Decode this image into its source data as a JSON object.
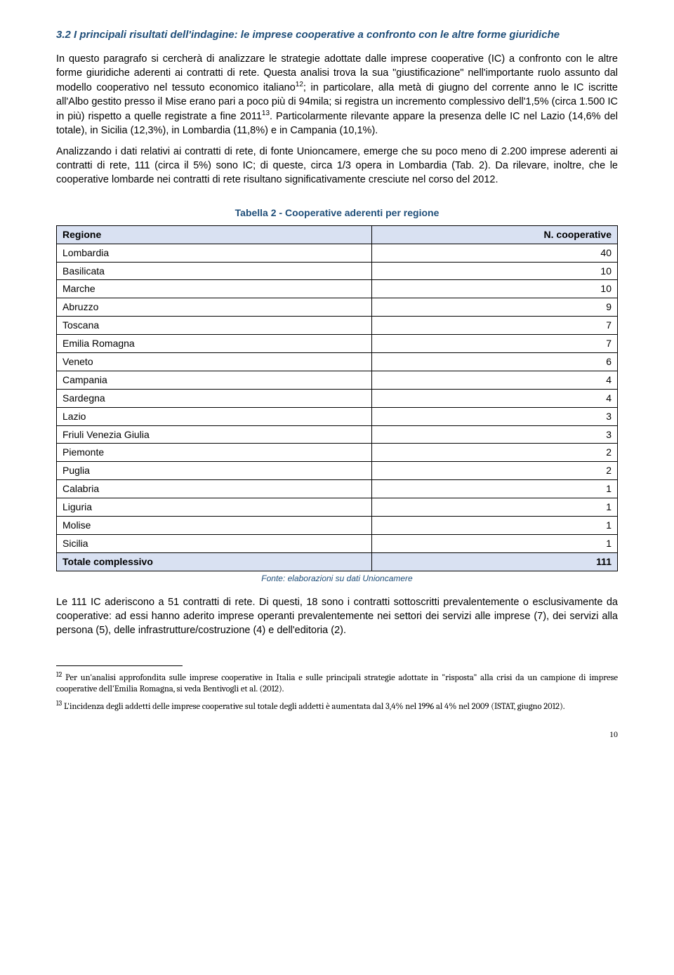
{
  "heading": "3.2 I principali risultati dell'indagine: le imprese cooperative a confronto con le altre forme giuridiche",
  "paragraphs": {
    "p1": "In questo paragrafo si cercherà di analizzare le strategie adottate dalle imprese cooperative (IC) a confronto con le altre forme giuridiche aderenti ai contratti di rete. Questa analisi trova la sua \"giustificazione\" nell'importante ruolo assunto dal modello cooperativo nel tessuto economico italiano",
    "p1b": "; in particolare, alla metà di giugno del corrente anno le IC iscritte all'Albo gestito presso il Mise erano pari a poco più di 94mila; si registra un incremento complessivo dell'1,5% (circa 1.500 IC in più) rispetto a quelle registrate a fine 2011",
    "p1c": ". Particolarmente rilevante appare la presenza delle IC nel Lazio (14,6% del totale), in Sicilia (12,3%), in Lombardia (11,8%) e in Campania (10,1%).",
    "p2": "Analizzando i dati relativi ai contratti di rete, di fonte Unioncamere, emerge che su poco meno di 2.200 imprese aderenti ai contratti di rete, 111 (circa il 5%) sono IC; di queste, circa 1/3 opera in Lombardia (Tab. 2). Da rilevare, inoltre, che le cooperative lombarde nei contratti di rete risultano significativamente cresciute nel corso del 2012.",
    "p3": "Le 111 IC aderiscono a 51 contratti di rete. Di questi, 18 sono i contratti sottoscritti prevalentemente o esclusivamente da cooperative: ad essi hanno aderito imprese operanti prevalentemente nei settori dei servizi alle imprese (7), dei servizi alla persona (5), delle infrastrutture/costruzione (4) e dell'editoria (2)."
  },
  "sup": {
    "fn12": "12",
    "fn13": "13"
  },
  "table": {
    "caption": "Tabella 2 - Cooperative aderenti per regione",
    "header": {
      "col1": "Regione",
      "col2": "N. cooperative"
    },
    "rows": [
      {
        "region": "Lombardia",
        "value": "40"
      },
      {
        "region": "Basilicata",
        "value": "10"
      },
      {
        "region": "Marche",
        "value": "10"
      },
      {
        "region": "Abruzzo",
        "value": "9"
      },
      {
        "region": "Toscana",
        "value": "7"
      },
      {
        "region": "Emilia Romagna",
        "value": "7"
      },
      {
        "region": "Veneto",
        "value": "6"
      },
      {
        "region": "Campania",
        "value": "4"
      },
      {
        "region": "Sardegna",
        "value": "4"
      },
      {
        "region": "Lazio",
        "value": "3"
      },
      {
        "region": "Friuli Venezia Giulia",
        "value": "3"
      },
      {
        "region": "Piemonte",
        "value": "2"
      },
      {
        "region": "Puglia",
        "value": "2"
      },
      {
        "region": "Calabria",
        "value": "1"
      },
      {
        "region": "Liguria",
        "value": "1"
      },
      {
        "region": "Molise",
        "value": "1"
      },
      {
        "region": "Sicilia",
        "value": "1"
      }
    ],
    "total": {
      "label": "Totale complessivo",
      "value": "111"
    },
    "source": "Fonte: elaborazioni su dati Unioncamere"
  },
  "footnotes": {
    "fn12_num": "12",
    "fn12_text": " Per un'analisi approfondita sulle imprese cooperative in Italia e sulle principali strategie adottate in \"risposta\" alla crisi da un campione di imprese cooperative dell'Emilia Romagna, si veda Bentivogli et al. (2012).",
    "fn13_num": "13",
    "fn13_text": " L'incidenza degli addetti delle imprese cooperative sul totale degli addetti è aumentata dal 3,4% nel 1996 al 4% nel 2009 (ISTAT, giugno 2012)."
  },
  "page_number": "10",
  "colors": {
    "heading_color": "#1f4e79",
    "table_header_bg": "#d9e1f2",
    "body_text": "#000000",
    "background": "#ffffff"
  }
}
